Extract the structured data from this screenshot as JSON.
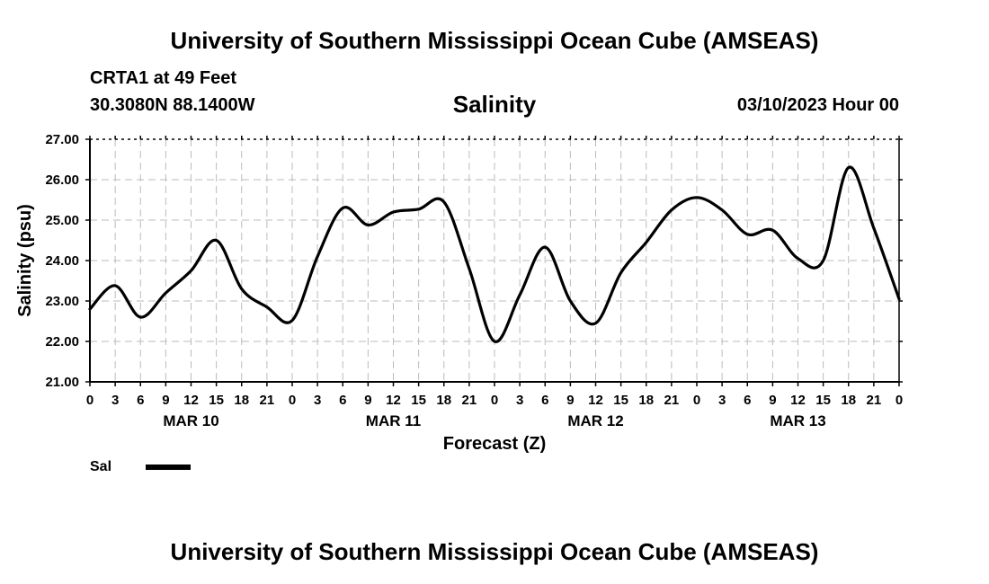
{
  "header": {
    "title": "University of Southern Mississippi Ocean Cube (AMSEAS)",
    "station": "CRTA1 at 49 Feet",
    "coordinates": "30.3080N  88.1400W",
    "datetime": "03/10/2023 Hour 00"
  },
  "footer": {
    "title": "University of Southern Mississippi Ocean Cube (AMSEAS)"
  },
  "legend": {
    "label": "Sal",
    "color": "#000000"
  },
  "chart_data": {
    "type": "line",
    "title": "Salinity",
    "xlabel": "Forecast (Z)",
    "ylabel": "Salinity (psu)",
    "xlim": [
      0,
      96
    ],
    "ylim": [
      21,
      27
    ],
    "yticks": [
      "21.00",
      "22.00",
      "23.00",
      "24.00",
      "25.00",
      "26.00",
      "27.00"
    ],
    "xtick_hours": [
      0,
      3,
      6,
      9,
      12,
      15,
      18,
      21,
      24,
      27,
      30,
      33,
      36,
      39,
      42,
      45,
      48,
      51,
      54,
      57,
      60,
      63,
      66,
      69,
      72,
      75,
      78,
      81,
      84,
      87,
      90,
      93,
      96
    ],
    "xtick_labels": [
      "0",
      "3",
      "6",
      "9",
      "12",
      "15",
      "18",
      "21",
      "0",
      "3",
      "6",
      "9",
      "12",
      "15",
      "18",
      "21",
      "0",
      "3",
      "6",
      "9",
      "12",
      "15",
      "18",
      "21",
      "0",
      "3",
      "6",
      "9",
      "12",
      "15",
      "18",
      "21",
      "0"
    ],
    "day_labels": [
      {
        "hour": 12,
        "label": "MAR 10"
      },
      {
        "hour": 36,
        "label": "MAR 11"
      },
      {
        "hour": 60,
        "label": "MAR 12"
      },
      {
        "hour": 84,
        "label": "MAR 13"
      }
    ],
    "grid": true,
    "series": [
      {
        "name": "Sal",
        "x": [
          0,
          3,
          6,
          9,
          12,
          15,
          18,
          21,
          24,
          27,
          30,
          33,
          36,
          39,
          42,
          45,
          48,
          51,
          54,
          57,
          60,
          63,
          66,
          69,
          72,
          75,
          78,
          81,
          84,
          87,
          90,
          93,
          96
        ],
        "values": [
          22.8,
          23.38,
          22.6,
          23.2,
          23.75,
          24.5,
          23.3,
          22.85,
          22.52,
          24.1,
          25.3,
          24.88,
          25.2,
          25.27,
          25.45,
          23.8,
          22.0,
          23.15,
          24.33,
          23.0,
          22.45,
          23.7,
          24.45,
          25.25,
          25.56,
          25.25,
          24.65,
          24.75,
          24.05,
          24.0,
          26.3,
          24.8,
          23.05
        ]
      }
    ]
  }
}
